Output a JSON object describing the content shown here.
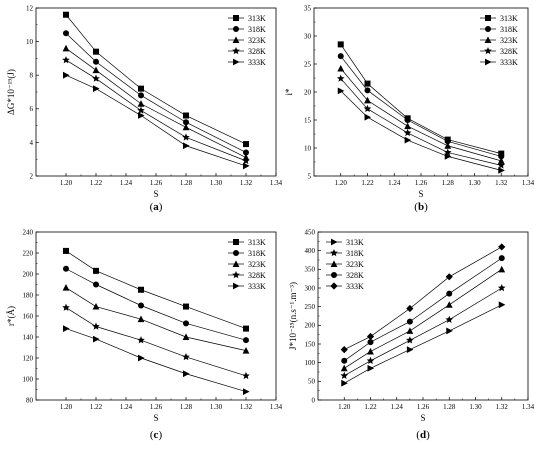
{
  "chart_data": [
    {
      "id": "a",
      "type": "line",
      "caption": "a",
      "xlabel": "S",
      "ylabel": "ΔG*10⁻¹⁹(J)",
      "xlim": [
        1.18,
        1.34
      ],
      "ylim": [
        2,
        12
      ],
      "xticks": [
        1.2,
        1.22,
        1.24,
        1.26,
        1.28,
        1.3,
        1.32,
        1.34
      ],
      "yticks": [
        2,
        4,
        6,
        8,
        10,
        12
      ],
      "x": [
        1.2,
        1.22,
        1.25,
        1.28,
        1.32
      ],
      "legend_position": "top-right",
      "series": [
        {
          "name": "313K",
          "marker": "square",
          "values": [
            11.6,
            9.4,
            7.2,
            5.6,
            3.9
          ]
        },
        {
          "name": "318K",
          "marker": "circle",
          "values": [
            10.5,
            8.8,
            6.8,
            5.2,
            3.4
          ]
        },
        {
          "name": "323K",
          "marker": "triangle-up",
          "values": [
            9.6,
            8.3,
            6.3,
            4.9,
            3.1
          ]
        },
        {
          "name": "328K",
          "marker": "star",
          "values": [
            8.9,
            7.8,
            5.9,
            4.3,
            2.9
          ]
        },
        {
          "name": "333K",
          "marker": "triangle-right",
          "values": [
            8.0,
            7.2,
            5.6,
            3.8,
            2.6
          ]
        }
      ]
    },
    {
      "id": "b",
      "type": "line",
      "caption": "b",
      "xlabel": "S",
      "ylabel": "i*",
      "xlim": [
        1.18,
        1.34
      ],
      "ylim": [
        5,
        35
      ],
      "xticks": [
        1.2,
        1.22,
        1.24,
        1.26,
        1.28,
        1.3,
        1.32,
        1.34
      ],
      "yticks": [
        5,
        10,
        15,
        20,
        25,
        30,
        35
      ],
      "x": [
        1.2,
        1.22,
        1.25,
        1.28,
        1.32
      ],
      "legend_position": "top-right",
      "series": [
        {
          "name": "313K",
          "marker": "square",
          "values": [
            28.5,
            21.5,
            15.3,
            11.5,
            9.0
          ]
        },
        {
          "name": "318K",
          "marker": "circle",
          "values": [
            26.4,
            20.3,
            15.0,
            11.2,
            8.5
          ]
        },
        {
          "name": "323K",
          "marker": "triangle-up",
          "values": [
            24.2,
            18.5,
            13.9,
            10.4,
            7.7
          ]
        },
        {
          "name": "328K",
          "marker": "star",
          "values": [
            22.4,
            17.0,
            12.7,
            9.2,
            6.9
          ]
        },
        {
          "name": "333K",
          "marker": "triangle-right",
          "values": [
            20.2,
            15.5,
            11.4,
            8.5,
            6.0
          ]
        }
      ]
    },
    {
      "id": "c",
      "type": "line",
      "caption": "c",
      "xlabel": "S",
      "ylabel": "r*(Å)",
      "xlim": [
        1.18,
        1.34
      ],
      "ylim": [
        80,
        240
      ],
      "xticks": [
        1.2,
        1.22,
        1.24,
        1.26,
        1.28,
        1.3,
        1.32,
        1.34
      ],
      "yticks": [
        80,
        100,
        120,
        140,
        160,
        180,
        200,
        220,
        240
      ],
      "x": [
        1.2,
        1.22,
        1.25,
        1.28,
        1.32
      ],
      "legend_position": "top-right",
      "series": [
        {
          "name": "313K",
          "marker": "square",
          "values": [
            222,
            203,
            185,
            169,
            148
          ]
        },
        {
          "name": "318K",
          "marker": "circle",
          "values": [
            205,
            190,
            170,
            153,
            137
          ]
        },
        {
          "name": "323K",
          "marker": "triangle-up",
          "values": [
            187,
            169,
            157,
            140,
            127
          ]
        },
        {
          "name": "328K",
          "marker": "star",
          "values": [
            168,
            150,
            137,
            121,
            103
          ]
        },
        {
          "name": "333K",
          "marker": "triangle-right",
          "values": [
            148,
            138,
            120,
            105,
            88
          ]
        }
      ]
    },
    {
      "id": "d",
      "type": "line",
      "caption": "d",
      "xlabel": "S",
      "ylabel": "J*10⁻²⁵(n.s⁻¹.m⁻³)",
      "xlim": [
        1.18,
        1.34
      ],
      "ylim": [
        0,
        450
      ],
      "xticks": [
        1.2,
        1.22,
        1.24,
        1.26,
        1.28,
        1.3,
        1.32,
        1.34
      ],
      "yticks": [
        0,
        50,
        100,
        150,
        200,
        250,
        300,
        350,
        400,
        450
      ],
      "x": [
        1.2,
        1.22,
        1.25,
        1.28,
        1.32
      ],
      "legend_position": "top-left",
      "series": [
        {
          "name": "313K",
          "marker": "triangle-right",
          "values": [
            45,
            85,
            135,
            185,
            255
          ]
        },
        {
          "name": "318K",
          "marker": "star",
          "values": [
            65,
            105,
            160,
            215,
            300
          ]
        },
        {
          "name": "323K",
          "marker": "triangle-up",
          "values": [
            85,
            130,
            185,
            255,
            350
          ]
        },
        {
          "name": "328K",
          "marker": "circle",
          "values": [
            105,
            155,
            210,
            285,
            380
          ]
        },
        {
          "name": "333K",
          "marker": "diamond",
          "values": [
            135,
            170,
            245,
            330,
            410
          ]
        }
      ]
    }
  ]
}
